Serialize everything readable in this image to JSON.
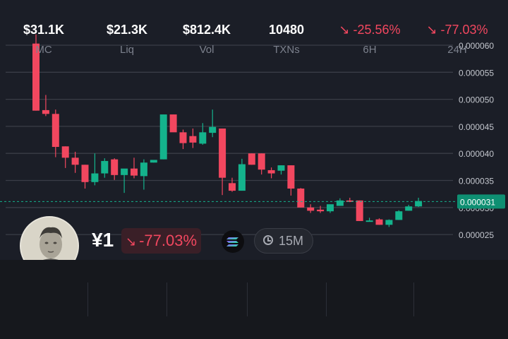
{
  "token": {
    "symbol": "¥1",
    "change_pct": "-77.03%",
    "chain_icon": "solana-icon",
    "timeframe": "15M"
  },
  "colors": {
    "up": "#14b38c",
    "down": "#f2475f",
    "background": "#1b1e27",
    "current_price_line": "#14b38c"
  },
  "chart_data": {
    "type": "candlestick",
    "title": "",
    "ylim": [
      2.25e-05,
      6.25e-05
    ],
    "yticks": [
      "0.000025",
      "0.000030",
      "0.000035",
      "0.000040",
      "0.000045",
      "0.000050",
      "0.000055",
      "0.000060"
    ],
    "grid": true,
    "current_price": 3.11e-05,
    "current_price_label": "0.000031",
    "candles": [
      {
        "o": 6.03e-05,
        "h": 6.2e-05,
        "l": 4.79e-05,
        "c": 4.79e-05
      },
      {
        "o": 4.8e-05,
        "h": 5.08e-05,
        "l": 4.69e-05,
        "c": 4.73e-05
      },
      {
        "o": 4.73e-05,
        "h": 4.81e-05,
        "l": 3.93e-05,
        "c": 4.12e-05
      },
      {
        "o": 4.13e-05,
        "h": 4.13e-05,
        "l": 3.73e-05,
        "c": 3.92e-05
      },
      {
        "o": 3.92e-05,
        "h": 4.03e-05,
        "l": 3.64e-05,
        "c": 3.79e-05
      },
      {
        "o": 3.79e-05,
        "h": 3.79e-05,
        "l": 3.35e-05,
        "c": 3.47e-05
      },
      {
        "o": 3.47e-05,
        "h": 4e-05,
        "l": 3.41e-05,
        "c": 3.63e-05
      },
      {
        "o": 3.63e-05,
        "h": 3.91e-05,
        "l": 3.55e-05,
        "c": 3.86e-05
      },
      {
        "o": 3.89e-05,
        "h": 3.91e-05,
        "l": 3.51e-05,
        "c": 3.6e-05
      },
      {
        "o": 3.6e-05,
        "h": 3.71e-05,
        "l": 3.27e-05,
        "c": 3.72e-05
      },
      {
        "o": 3.72e-05,
        "h": 3.92e-05,
        "l": 3.54e-05,
        "c": 3.59e-05
      },
      {
        "o": 3.58e-05,
        "h": 3.89e-05,
        "l": 3.33e-05,
        "c": 3.83e-05
      },
      {
        "o": 3.83e-05,
        "h": 3.86e-05,
        "l": 3.83e-05,
        "c": 3.88e-05
      },
      {
        "o": 3.89e-05,
        "h": 4.72e-05,
        "l": 3.89e-05,
        "c": 4.72e-05
      },
      {
        "o": 4.72e-05,
        "h": 4.72e-05,
        "l": 4.4e-05,
        "c": 4.39e-05
      },
      {
        "o": 4.39e-05,
        "h": 4.44e-05,
        "l": 4.08e-05,
        "c": 4.19e-05
      },
      {
        "o": 4.32e-05,
        "h": 4.46e-05,
        "l": 4.1e-05,
        "c": 4.2e-05
      },
      {
        "o": 4.18e-05,
        "h": 4.56e-05,
        "l": 4.16e-05,
        "c": 4.39e-05
      },
      {
        "o": 4.38e-05,
        "h": 4.81e-05,
        "l": 4.3e-05,
        "c": 4.49e-05
      },
      {
        "o": 4.46e-05,
        "h": 4.46e-05,
        "l": 3.23e-05,
        "c": 3.55e-05
      },
      {
        "o": 3.45e-05,
        "h": 3.55e-05,
        "l": 3.29e-05,
        "c": 3.31e-05
      },
      {
        "o": 3.31e-05,
        "h": 3.9e-05,
        "l": 3.31e-05,
        "c": 3.8e-05
      },
      {
        "o": 4e-05,
        "h": 4e-05,
        "l": 3.79e-05,
        "c": 3.79e-05
      },
      {
        "o": 4e-05,
        "h": 4e-05,
        "l": 3.61e-05,
        "c": 3.7e-05
      },
      {
        "o": 3.69e-05,
        "h": 3.74e-05,
        "l": 3.54e-05,
        "c": 3.63e-05
      },
      {
        "o": 3.68e-05,
        "h": 3.78e-05,
        "l": 3.61e-05,
        "c": 3.78e-05
      },
      {
        "o": 3.78e-05,
        "h": 3.78e-05,
        "l": 3.22e-05,
        "c": 3.35e-05
      },
      {
        "o": 3.35e-05,
        "h": 3.36e-05,
        "l": 3e-05,
        "c": 3e-05
      },
      {
        "o": 3e-05,
        "h": 3.06e-05,
        "l": 2.9e-05,
        "c": 2.94e-05
      },
      {
        "o": 2.96e-05,
        "h": 3.03e-05,
        "l": 2.9e-05,
        "c": 2.93e-05
      },
      {
        "o": 2.93e-05,
        "h": 3.05e-05,
        "l": 2.9e-05,
        "c": 3.06e-05
      },
      {
        "o": 3.03e-05,
        "h": 3.17e-05,
        "l": 3.03e-05,
        "c": 3.13e-05
      },
      {
        "o": 3.13e-05,
        "h": 3.18e-05,
        "l": 3.1e-05,
        "c": 3.12e-05
      },
      {
        "o": 3.13e-05,
        "h": 3.13e-05,
        "l": 2.75e-05,
        "c": 2.75e-05
      },
      {
        "o": 2.76e-05,
        "h": 2.81e-05,
        "l": 2.74e-05,
        "c": 2.76e-05
      },
      {
        "o": 2.78e-05,
        "h": 2.8e-05,
        "l": 2.68e-05,
        "c": 2.68e-05
      },
      {
        "o": 2.68e-05,
        "h": 2.78e-05,
        "l": 2.64e-05,
        "c": 2.77e-05
      },
      {
        "o": 2.77e-05,
        "h": 2.95e-05,
        "l": 2.77e-05,
        "c": 2.93e-05
      },
      {
        "o": 2.94e-05,
        "h": 3.05e-05,
        "l": 2.94e-05,
        "c": 3.02e-05
      },
      {
        "o": 3.02e-05,
        "h": 3.18e-05,
        "l": 3.01e-05,
        "c": 3.12e-05
      }
    ]
  },
  "stats": [
    {
      "value": "$31.1K",
      "label": "MC",
      "neg": false
    },
    {
      "value": "$21.3K",
      "label": "Liq",
      "neg": false
    },
    {
      "value": "$812.4K",
      "label": "Vol",
      "neg": false
    },
    {
      "value": "10480",
      "label": "TXNs",
      "neg": false
    },
    {
      "value": "-25.56%",
      "label": "6H",
      "neg": true
    },
    {
      "value": "-77.03%",
      "label": "24H",
      "neg": true
    }
  ]
}
